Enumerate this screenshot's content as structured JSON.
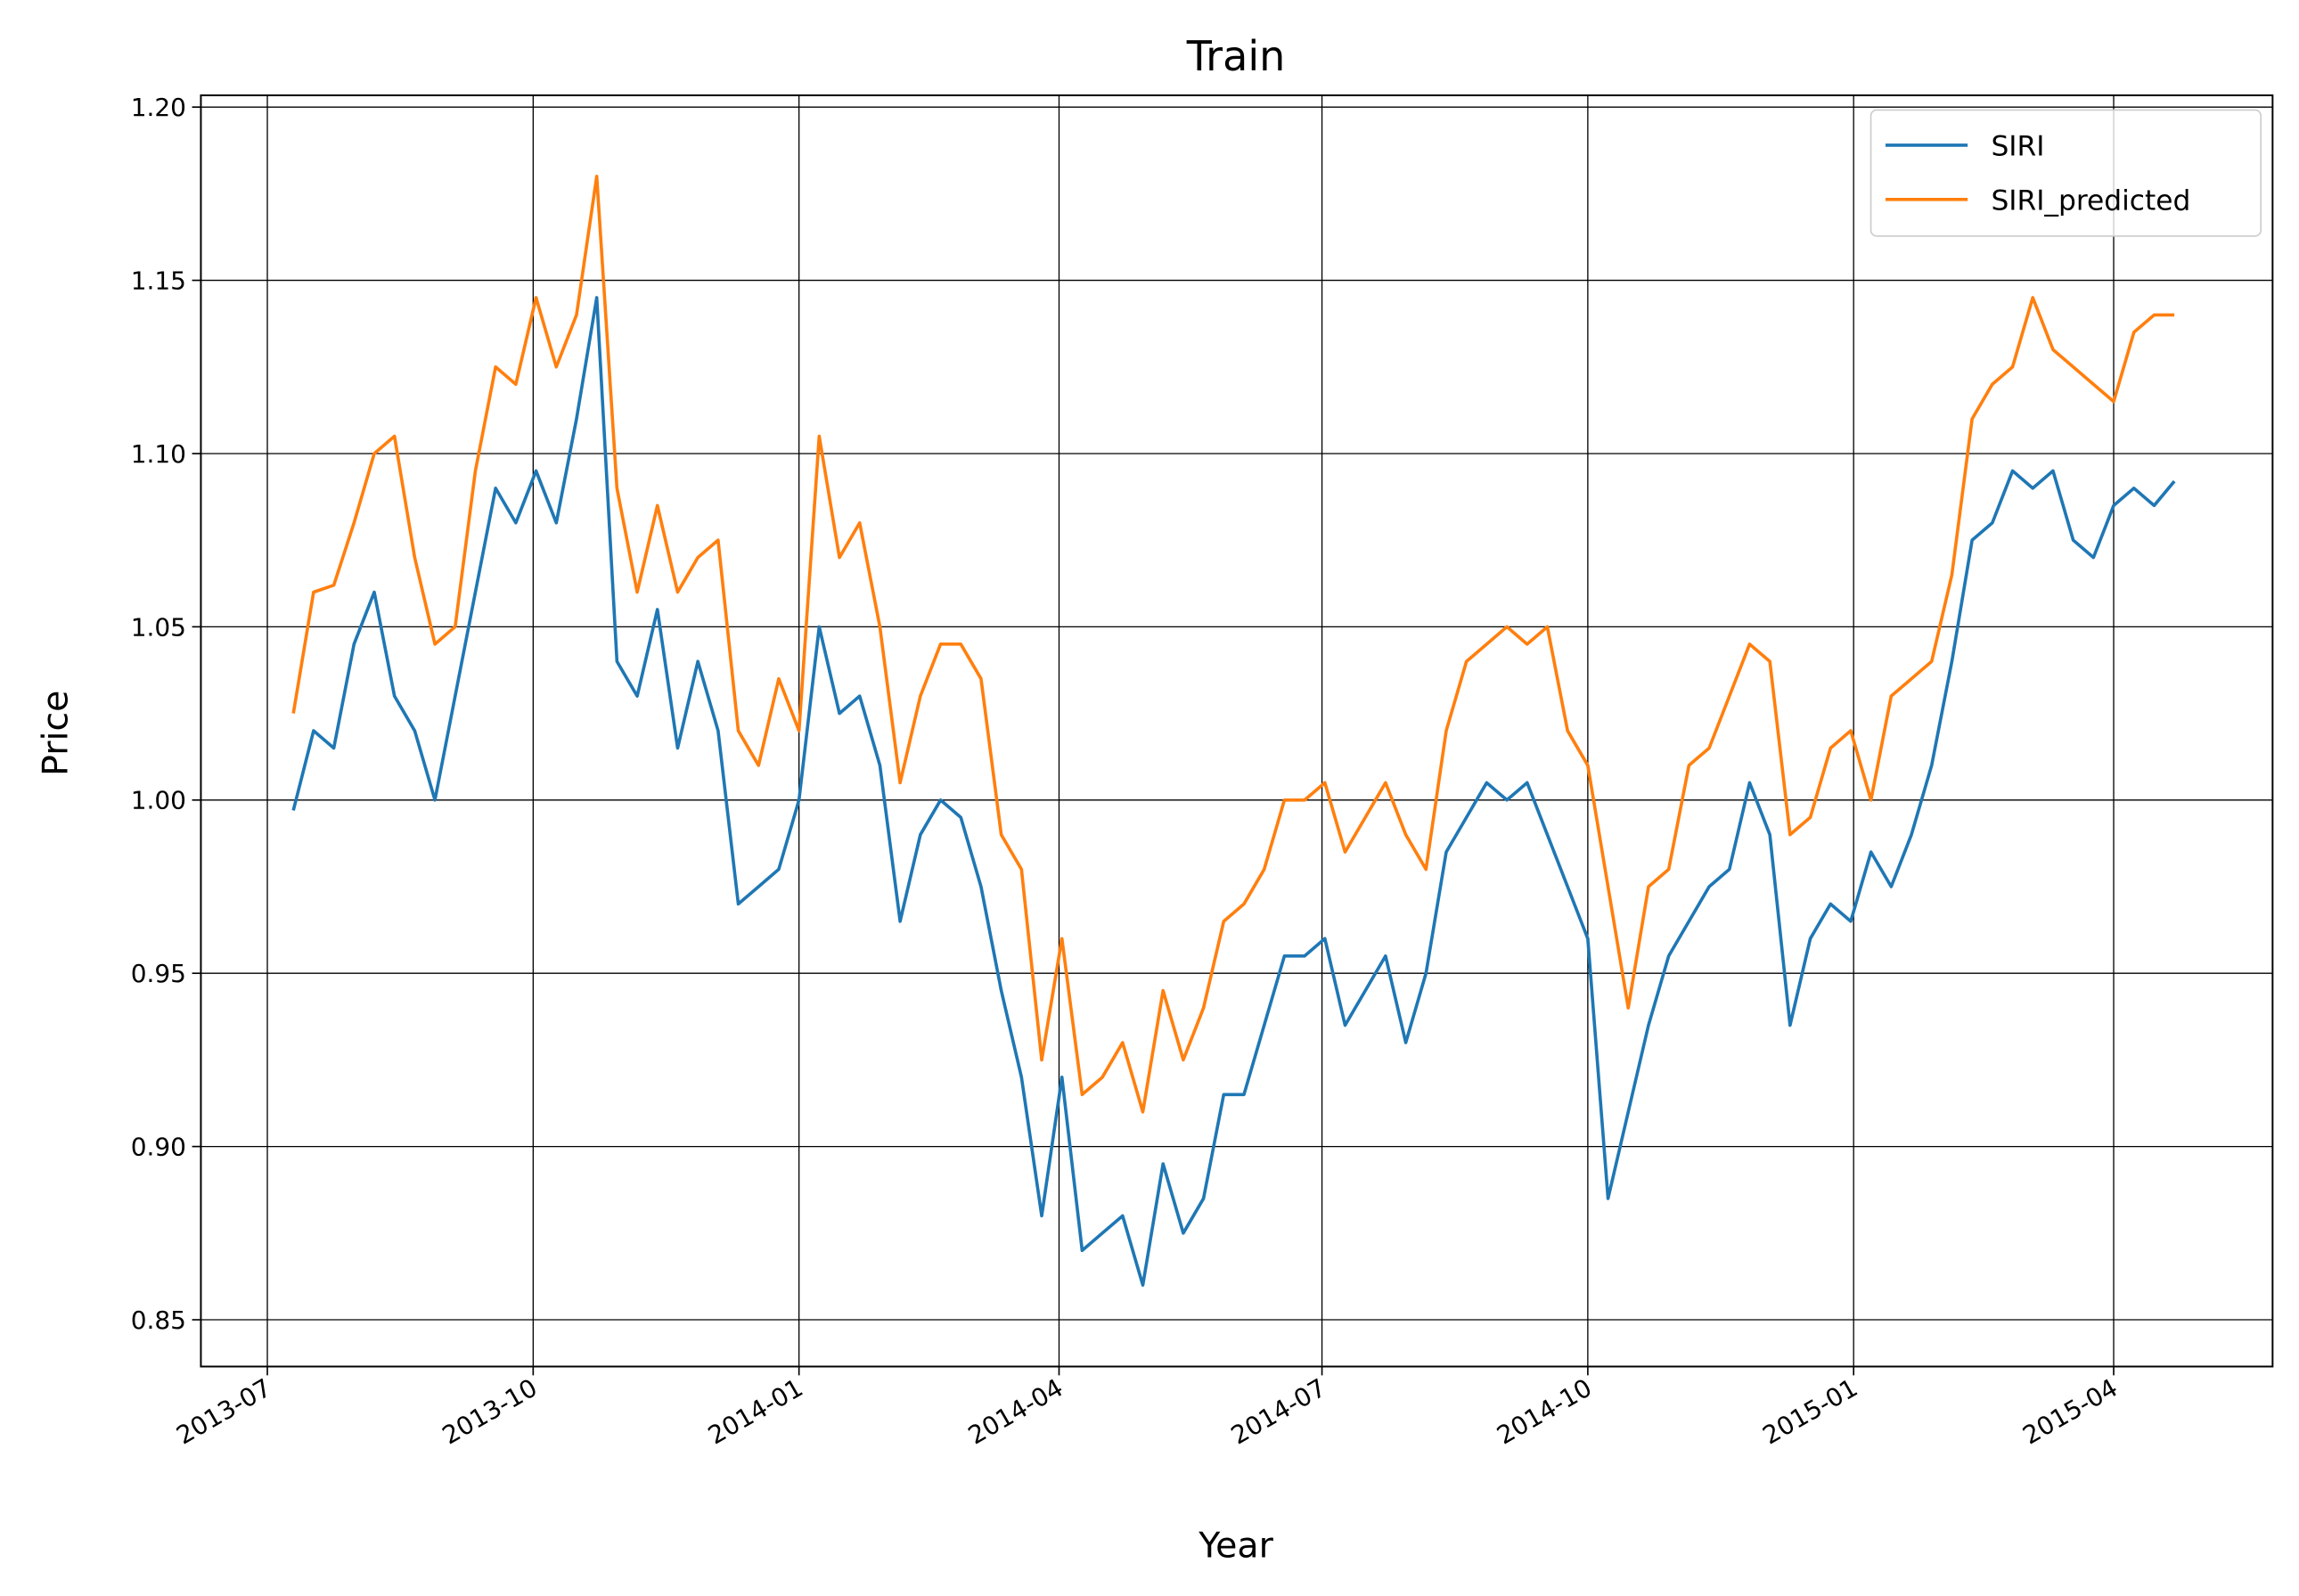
{
  "chart_data": {
    "type": "line",
    "title": "Train",
    "xlabel": "Year",
    "ylabel": "Price",
    "x": [
      "2013-07-10",
      "2013-07-17",
      "2013-07-24",
      "2013-07-31",
      "2013-08-07",
      "2013-08-14",
      "2013-08-21",
      "2013-08-28",
      "2013-09-04",
      "2013-09-11",
      "2013-09-18",
      "2013-09-25",
      "2013-10-02",
      "2013-10-09",
      "2013-10-16",
      "2013-10-23",
      "2013-10-30",
      "2013-11-06",
      "2013-11-13",
      "2013-11-20",
      "2013-11-27",
      "2013-12-04",
      "2013-12-11",
      "2013-12-18",
      "2013-12-25",
      "2014-01-01",
      "2014-01-08",
      "2014-01-15",
      "2014-01-22",
      "2014-01-29",
      "2014-02-05",
      "2014-02-12",
      "2014-02-19",
      "2014-02-26",
      "2014-03-05",
      "2014-03-12",
      "2014-03-19",
      "2014-03-26",
      "2014-04-02",
      "2014-04-09",
      "2014-04-16",
      "2014-04-23",
      "2014-04-30",
      "2014-05-07",
      "2014-05-14",
      "2014-05-21",
      "2014-05-28",
      "2014-06-04",
      "2014-06-11",
      "2014-06-18",
      "2014-06-25",
      "2014-07-02",
      "2014-07-09",
      "2014-07-16",
      "2014-07-23",
      "2014-07-30",
      "2014-08-06",
      "2014-08-13",
      "2014-08-20",
      "2014-08-27",
      "2014-09-03",
      "2014-09-10",
      "2014-09-17",
      "2014-09-24",
      "2014-10-01",
      "2014-10-08",
      "2014-10-15",
      "2014-10-22",
      "2014-10-29",
      "2014-11-05",
      "2014-11-12",
      "2014-11-19",
      "2014-11-26",
      "2014-12-03",
      "2014-12-10",
      "2014-12-17",
      "2014-12-24",
      "2014-12-31",
      "2015-01-07",
      "2015-01-14",
      "2015-01-21",
      "2015-01-28",
      "2015-02-04",
      "2015-02-11",
      "2015-02-18",
      "2015-02-25",
      "2015-03-04",
      "2015-03-11",
      "2015-03-18",
      "2015-03-25",
      "2015-04-01",
      "2015-04-08",
      "2015-04-15",
      "2015-04-22"
    ],
    "series": [
      {
        "name": "SIRI",
        "color": "#1f77b4",
        "values": [
          0.997,
          1.02,
          1.015,
          1.045,
          1.06,
          1.03,
          1.02,
          1.0,
          1.03,
          1.06,
          1.09,
          1.08,
          1.095,
          1.08,
          1.11,
          1.145,
          1.04,
          1.03,
          1.055,
          1.015,
          1.04,
          1.02,
          0.97,
          0.975,
          0.98,
          1.0,
          1.05,
          1.025,
          1.03,
          1.01,
          0.965,
          0.99,
          1.0,
          0.995,
          0.975,
          0.945,
          0.92,
          0.88,
          0.92,
          0.87,
          0.875,
          0.88,
          0.86,
          0.895,
          0.875,
          0.885,
          0.915,
          0.915,
          0.935,
          0.955,
          0.955,
          0.96,
          0.935,
          0.945,
          0.955,
          0.93,
          0.95,
          0.985,
          0.995,
          1.005,
          1.0,
          1.005,
          0.99,
          0.975,
          0.96,
          0.885,
          0.91,
          0.935,
          0.955,
          0.965,
          0.975,
          0.98,
          1.005,
          0.99,
          0.935,
          0.96,
          0.97,
          0.965,
          0.985,
          0.975,
          0.99,
          1.01,
          1.04,
          1.075,
          1.08,
          1.095,
          1.09,
          1.095,
          1.075,
          1.07,
          1.085,
          1.09,
          1.085,
          1.092
        ]
      },
      {
        "name": "SIRI_predicted",
        "color": "#ff7f0e",
        "values": [
          1.025,
          1.06,
          1.062,
          1.08,
          1.1,
          1.105,
          1.07,
          1.045,
          1.05,
          1.095,
          1.125,
          1.12,
          1.145,
          1.125,
          1.14,
          1.18,
          1.09,
          1.06,
          1.085,
          1.06,
          1.07,
          1.075,
          1.02,
          1.01,
          1.035,
          1.02,
          1.105,
          1.07,
          1.08,
          1.05,
          1.005,
          1.03,
          1.045,
          1.045,
          1.035,
          0.99,
          0.98,
          0.925,
          0.96,
          0.915,
          0.92,
          0.93,
          0.91,
          0.945,
          0.925,
          0.94,
          0.965,
          0.97,
          0.98,
          1.0,
          1.0,
          1.005,
          0.985,
          0.995,
          1.005,
          0.99,
          0.98,
          1.02,
          1.04,
          1.045,
          1.05,
          1.045,
          1.05,
          1.02,
          1.01,
          0.975,
          0.94,
          0.975,
          0.98,
          1.01,
          1.015,
          1.03,
          1.045,
          1.04,
          0.99,
          0.995,
          1.015,
          1.02,
          1.0,
          1.03,
          1.035,
          1.04,
          1.065,
          1.11,
          1.12,
          1.125,
          1.145,
          1.13,
          1.125,
          1.12,
          1.115,
          1.135,
          1.14,
          1.14
        ]
      }
    ],
    "xlim": [
      "2013-06-08",
      "2015-05-26"
    ],
    "xticks": [
      "2013-07",
      "2013-10",
      "2014-01",
      "2014-04",
      "2014-07",
      "2014-10",
      "2015-01",
      "2015-04"
    ],
    "ylim": [
      0.8365,
      1.2034
    ],
    "yticks": [
      {
        "value": 0.85,
        "label": "0.85"
      },
      {
        "value": 0.9,
        "label": "0.90"
      },
      0.95,
      {
        "value": 1.0,
        "label": "1.00"
      },
      1.05,
      {
        "value": 1.1,
        "label": "1.10"
      },
      1.15,
      {
        "value": 1.2,
        "label": "1.20"
      }
    ],
    "grid": true,
    "legend": "upper right"
  }
}
